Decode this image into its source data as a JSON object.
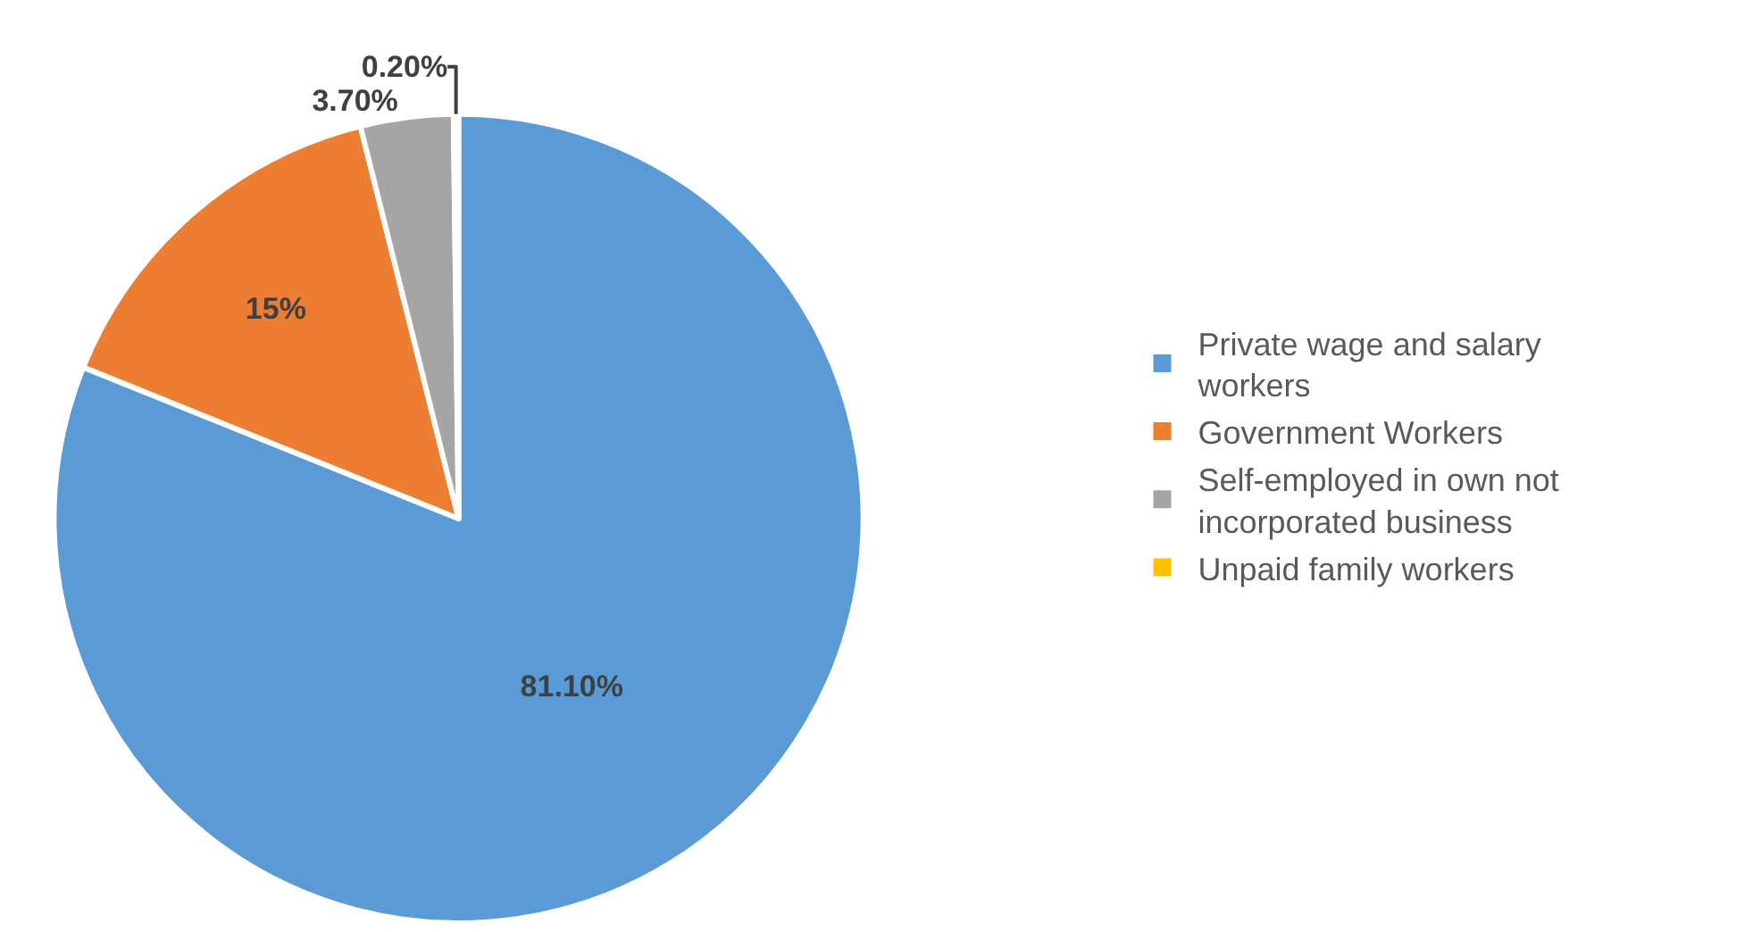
{
  "chart_data": {
    "type": "pie",
    "categories": [
      "Private wage and salary workers",
      "Government Workers",
      "Self-employed in own not incorporated business",
      "Unpaid family workers"
    ],
    "values": [
      81.1,
      15,
      3.7,
      0.2
    ],
    "colors": [
      "#5b9bd5",
      "#ed7d31",
      "#a5a5a5",
      "#ffc000"
    ],
    "value_labels": [
      "81.10%",
      "15%",
      "3.70%",
      "0.20%"
    ],
    "legend": "right"
  }
}
